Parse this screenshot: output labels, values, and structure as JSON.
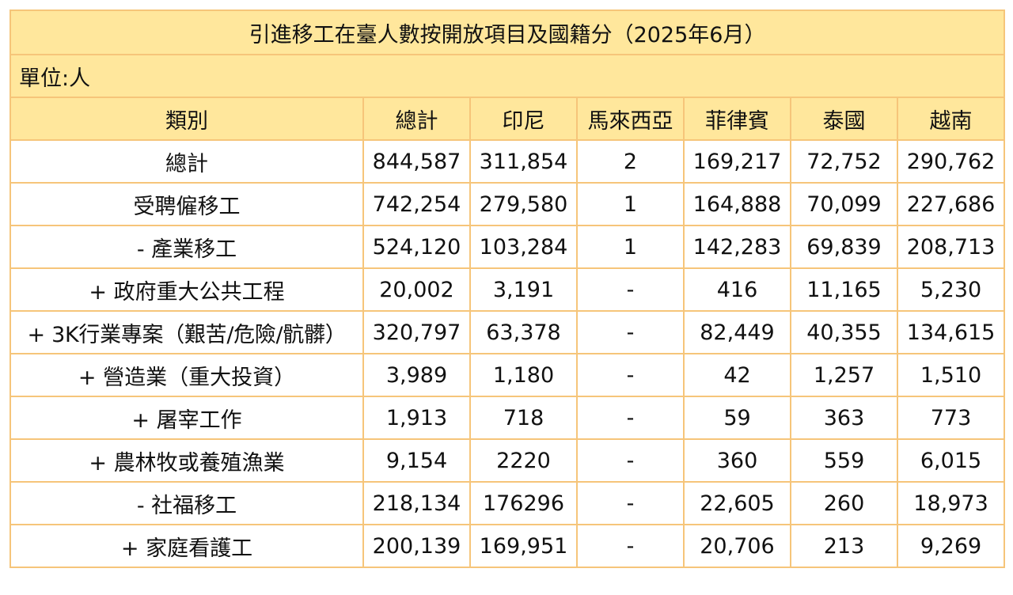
{
  "title": "引進移工在臺人數按開放項目及國籍分（2025年6月）",
  "unit": "單位:人",
  "headers": [
    "類別",
    "總計",
    "印尼",
    "馬來西亞",
    "菲律賓",
    "泰國",
    "越南"
  ],
  "rows": [
    [
      "總計",
      "844,587",
      "311,854",
      "2",
      "169,217",
      "72,752",
      "290,762"
    ],
    [
      "受聘僱移工",
      "742,254",
      "279,580",
      "1",
      "164,888",
      "70,099",
      "227,686"
    ],
    [
      "- 產業移工",
      "524,120",
      "103,284",
      "1",
      "142,283",
      "69,839",
      "208,713"
    ],
    [
      "+ 政府重大公共工程",
      "20,002",
      "3,191",
      "-",
      "416",
      "11,165",
      "5,230"
    ],
    [
      "+ 3K行業專案（艱苦/危險/骯髒）",
      "320,797",
      "63,378",
      "-",
      "82,449",
      "40,355",
      "134,615"
    ],
    [
      "+ 營造業（重大投資）",
      "3,989",
      "1,180",
      "-",
      "42",
      "1,257",
      "1,510"
    ],
    [
      "+ 屠宰工作",
      "1,913",
      "718",
      "-",
      "59",
      "363",
      "773"
    ],
    [
      "+ 農林牧或養殖漁業",
      "9,154",
      "2220",
      "-",
      "360",
      "559",
      "6,015"
    ],
    [
      "- 社福移工",
      "218,134",
      "176296",
      "-",
      "22,605",
      "260",
      "18,973"
    ],
    [
      "+ 家庭看護工",
      "200,139",
      "169,951",
      "-",
      "20,706",
      "213",
      "9,269"
    ]
  ],
  "colors": {
    "header_bg": "#ffe79c",
    "border": "#f6c57a",
    "body_bg": "#ffffff"
  }
}
